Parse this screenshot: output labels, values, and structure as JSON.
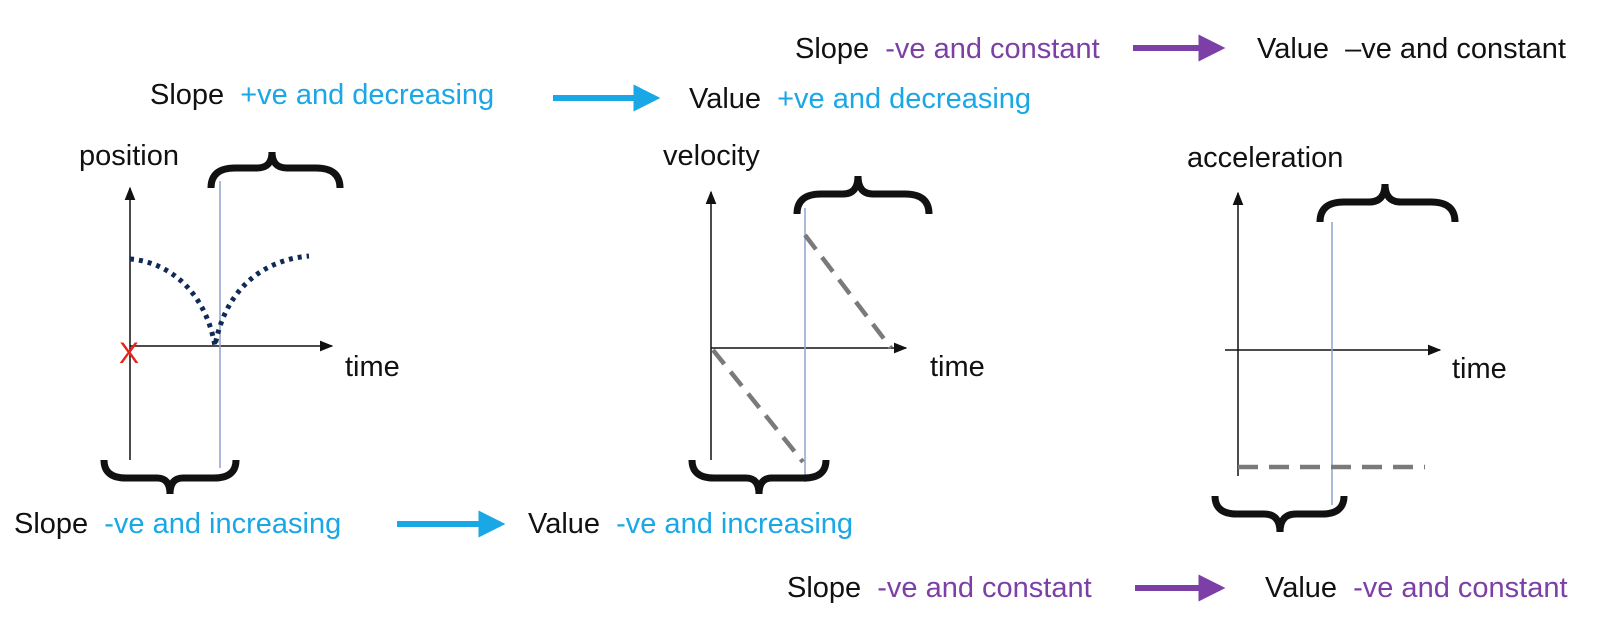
{
  "colors": {
    "text": "#111111",
    "blue": "#1aa7e6",
    "purple": "#7b3fa6",
    "curve": "#0f2a55",
    "dashed": "#7a7a7a",
    "marker": "#e8231c",
    "guide": "#8fa4cc"
  },
  "captions": {
    "top_right": {
      "slope_word": "Slope",
      "slope_desc": "-ve and constant",
      "value_word": "Value",
      "value_desc": "–ve and constant"
    },
    "top_left": {
      "slope_word": "Slope",
      "slope_desc": "+ve and decreasing",
      "value_word": "Value",
      "value_desc": "+ve and decreasing"
    },
    "bottom_left": {
      "slope_word": "Slope",
      "slope_desc": "-ve and increasing",
      "value_word": "Value",
      "value_desc": "-ve and increasing"
    },
    "bottom_right": {
      "slope_word": "Slope",
      "slope_desc": "-ve and constant",
      "value_word": "Value",
      "value_desc": "-ve and constant"
    }
  },
  "graphs": {
    "position": {
      "ylabel": "position",
      "xlabel": "time",
      "marker": "X"
    },
    "velocity": {
      "ylabel": "velocity",
      "xlabel": "time"
    },
    "acceleration": {
      "ylabel": "acceleration",
      "xlabel": "time"
    }
  }
}
